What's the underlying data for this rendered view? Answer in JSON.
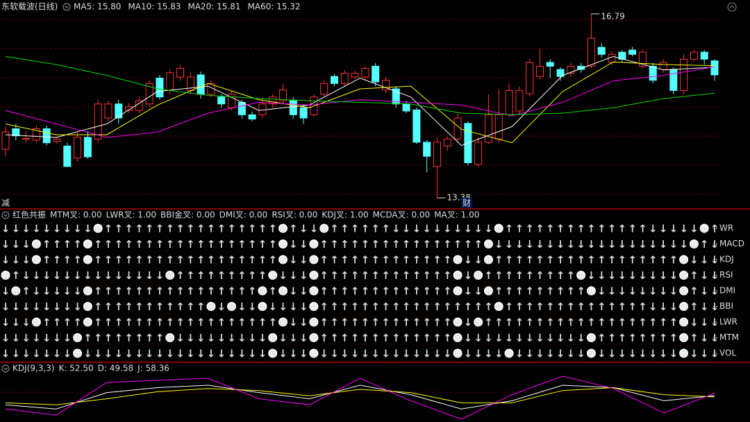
{
  "chart_data": [
    {
      "type": "candlestick",
      "title": "东软载波(日线)",
      "legend": [
        "MA5: 15.80",
        "MA10: 15.83",
        "MA20: 15.81",
        "MA60: 15.32"
      ],
      "open": [
        14.28,
        14.66,
        14.47,
        14.45,
        14.66,
        14.42,
        14.34,
        14.12,
        14.5,
        14.47,
        14.86,
        15.12,
        15.0,
        15.0,
        15.12,
        15.6,
        15.37,
        15.62,
        15.37,
        15.66,
        15.3,
        15.25,
        15.05,
        15.15,
        14.92,
        14.92,
        15.12,
        15.18,
        15.18,
        15.05,
        14.92,
        15.3,
        15.63,
        15.5,
        15.62,
        15.62,
        15.82,
        15.38,
        15.4,
        15.12,
        15.01,
        14.41,
        13.96,
        14.34,
        14.47,
        14.76,
        14.0,
        14.41,
        14.47,
        14.92,
        14.99,
        15.31,
        15.63,
        15.89,
        15.76,
        15.69,
        15.82,
        15.82,
        16.17,
        15.89,
        16.08,
        16.12,
        15.82,
        15.82,
        15.76,
        15.76,
        15.37,
        15.95,
        16.08,
        15.92
      ],
      "high": [
        14.7,
        14.75,
        14.62,
        14.72,
        14.72,
        14.5,
        14.4,
        14.6,
        14.62,
        15.2,
        15.18,
        15.2,
        15.14,
        15.25,
        15.56,
        15.66,
        15.76,
        15.84,
        15.7,
        15.72,
        15.56,
        15.3,
        15.35,
        15.2,
        14.98,
        15.25,
        15.3,
        15.5,
        15.25,
        15.1,
        15.3,
        15.55,
        15.68,
        15.75,
        15.74,
        15.82,
        15.88,
        15.62,
        15.45,
        15.18,
        15.05,
        14.45,
        14.5,
        14.52,
        14.95,
        14.8,
        14.5,
        15.3,
        15.4,
        15.5,
        15.44,
        15.95,
        16.15,
        15.95,
        15.8,
        15.88,
        15.88,
        16.79,
        16.25,
        16.1,
        16.12,
        16.18,
        16.12,
        15.88,
        15.95,
        15.8,
        16.05,
        16.12,
        16.12,
        15.95
      ],
      "low": [
        14.15,
        14.45,
        14.4,
        14.4,
        14.35,
        14.38,
        13.95,
        14.05,
        14.1,
        14.4,
        14.8,
        14.75,
        14.95,
        14.95,
        15.05,
        15.2,
        15.3,
        15.55,
        15.3,
        15.22,
        15.25,
        15.05,
        15.0,
        14.85,
        14.8,
        14.85,
        15.05,
        15.1,
        14.85,
        14.75,
        14.88,
        15.25,
        15.45,
        15.45,
        15.58,
        15.57,
        15.45,
        15.32,
        15.05,
        14.95,
        14.38,
        13.85,
        13.38,
        14.25,
        14.4,
        13.98,
        13.95,
        14.38,
        14.4,
        14.88,
        14.92,
        15.25,
        15.58,
        15.6,
        15.55,
        15.62,
        15.7,
        15.78,
        15.98,
        15.84,
        15.9,
        16.0,
        15.78,
        15.5,
        15.7,
        15.3,
        15.3,
        15.9,
        15.85,
        15.55
      ],
      "close": [
        14.6,
        14.53,
        14.48,
        14.66,
        14.4,
        14.47,
        13.96,
        14.5,
        14.14,
        15.12,
        15.12,
        14.86,
        15.07,
        15.18,
        15.5,
        15.25,
        15.7,
        15.78,
        15.62,
        15.3,
        15.5,
        15.12,
        15.3,
        14.92,
        14.84,
        15.12,
        15.25,
        15.38,
        14.92,
        14.86,
        15.25,
        15.5,
        15.5,
        15.69,
        15.69,
        15.78,
        15.53,
        15.56,
        15.12,
        14.99,
        14.41,
        14.15,
        14.41,
        14.47,
        14.86,
        14.03,
        14.41,
        14.92,
        14.92,
        15.37,
        15.37,
        15.89,
        15.82,
        15.82,
        15.63,
        15.82,
        15.76,
        16.34,
        16.04,
        16.04,
        15.95,
        16.04,
        16.08,
        15.56,
        15.89,
        15.37,
        15.95,
        16.08,
        15.95,
        15.66
      ],
      "up_color": "#ff3232",
      "down_color": "#54ffff",
      "series": [
        {
          "name": "MA5",
          "color": "#ffffff",
          "values": [
            14.55,
            14.5,
            14.75,
            15.35,
            15.45,
            15.0,
            15.1,
            15.6,
            15.25,
            14.35,
            14.7,
            15.65,
            16.0,
            15.75,
            15.8
          ]
        },
        {
          "name": "MA10",
          "color": "#ffff00",
          "values": [
            14.75,
            14.55,
            14.55,
            15.1,
            15.5,
            15.2,
            15.05,
            15.4,
            15.45,
            14.65,
            14.4,
            15.35,
            15.9,
            15.85,
            15.83
          ]
        },
        {
          "name": "MA20",
          "color": "#ff00ff",
          "values": [
            15.0,
            14.75,
            14.5,
            14.6,
            14.95,
            15.15,
            15.1,
            15.2,
            15.15,
            15.1,
            14.9,
            15.15,
            15.55,
            15.65,
            15.81
          ]
        },
        {
          "name": "MA60",
          "color": "#00e000",
          "values": [
            16.0,
            15.85,
            15.65,
            15.4,
            15.28,
            15.22,
            15.18,
            15.15,
            15.12,
            14.95,
            14.92,
            14.95,
            15.05,
            15.22,
            15.32
          ]
        }
      ],
      "notes": [
        "减",
        "财"
      ]
    },
    {
      "type": "matrix",
      "title": "红色共振",
      "items": [
        "MTM叉: 0.00",
        "LWR叉: 1.00",
        "BBI金叉: 0.00",
        "DMI叉: 0.00",
        "RSI叉: 0.00",
        "KDJ叉: 1.00",
        "MCDA叉: 0.00",
        "MA叉: 1.00"
      ],
      "row_labels": [
        "WR",
        "MACD",
        "KDJ",
        "RSI",
        "DMI",
        "BBI",
        "LWR",
        "MTM",
        "VOL"
      ],
      "up_color": "#ff3232",
      "down_color": "#00e000",
      "rows": [
        [
          "↓",
          "↓",
          "↓",
          "↓",
          "↓",
          "↓",
          "↓",
          "↓",
          "↓",
          "⊕",
          "↑",
          "↑",
          "↑",
          "↑",
          "↑",
          "↑",
          "↑",
          "↑",
          "↑",
          "↑",
          "↑",
          "↑",
          "↑",
          "↑",
          "↑",
          "↑",
          "↑",
          "⊕",
          "↑",
          "↓",
          "↓",
          "⊕",
          "↑",
          "↑",
          "↑",
          "↑",
          "↑",
          "↑",
          "↓",
          "↓",
          "↓",
          "↓",
          "↓",
          "↓",
          "↓",
          "↓",
          "↓",
          "↓",
          "⊕",
          "↑",
          "↑",
          "↑",
          "↑",
          "↑",
          "↑",
          "↑",
          "↑",
          "↑",
          "↑",
          "↑",
          "↑",
          "↑",
          "↑",
          "↓",
          "↓",
          "↓",
          "↓",
          "↓",
          "⊕",
          "↑"
        ],
        [
          "↓",
          "↓",
          "↓",
          "⊕",
          "↑",
          "↑",
          "↑",
          "↑",
          "⊕",
          "↑",
          "↑",
          "↑",
          "↑",
          "↑",
          "↑",
          "↑",
          "↑",
          "↑",
          "↑",
          "↑",
          "↑",
          "↑",
          "↑",
          "↑",
          "↑",
          "↑",
          "↑",
          "⊕",
          "↓",
          "↓",
          "⊕",
          "↑",
          "↑",
          "↑",
          "↑",
          "↑",
          "↑",
          "↑",
          "↑",
          "↑",
          "↑",
          "↑",
          "↑",
          "↑",
          "↑",
          "↑",
          "↑",
          "⊕",
          "↓",
          "↓",
          "↓",
          "↓",
          "↓",
          "↓",
          "↓",
          "↓",
          "↓",
          "↓",
          "↓",
          "↓",
          "↓",
          "↓",
          "↓",
          "↓",
          "↓",
          "↓",
          "↓",
          "⊕",
          "↑",
          "↓"
        ],
        [
          "↓",
          "↓",
          "↓",
          "⊕",
          "↑",
          "↑",
          "↑",
          "↑",
          "⊕",
          "↑",
          "↑",
          "↑",
          "↑",
          "↑",
          "↑",
          "↑",
          "↑",
          "↑",
          "↑",
          "↑",
          "↑",
          "↑",
          "↑",
          "↑",
          "↑",
          "↑",
          "↑",
          "⊕",
          "↓",
          "↓",
          "⊕",
          "↑",
          "↑",
          "↑",
          "↑",
          "↑",
          "↑",
          "↑",
          "↑",
          "↑",
          "↑",
          "↑",
          "↑",
          "↑",
          "⊕",
          "↓",
          "↓",
          "⊕",
          "↑",
          "↑",
          "↑",
          "↑",
          "↑",
          "↑",
          "↑",
          "↑",
          "↑",
          "↑",
          "↑",
          "↑",
          "↑",
          "↑",
          "↑",
          "↑",
          "↑",
          "↑",
          "⊕",
          "↓",
          "↓",
          "↓"
        ],
        [
          "⊕",
          "↑",
          "↓",
          "↓",
          "↓",
          "↓",
          "↓",
          "↓",
          "↓",
          "↓",
          "↓",
          "↓",
          "↓",
          "↓",
          "↓",
          "↓",
          "⊕",
          "↑",
          "↑",
          "↑",
          "↑",
          "↑",
          "↑",
          "↑",
          "↑",
          "↑",
          "⊕",
          "↓",
          "↓",
          "↓",
          "⊕",
          "↑",
          "↑",
          "↑",
          "↑",
          "↑",
          "↑",
          "↑",
          "↑",
          "↑",
          "↑",
          "↑",
          "↑",
          "↑",
          "⊕",
          "↓",
          "⊕",
          "↑",
          "↑",
          "↑",
          "↑",
          "↑",
          "↑",
          "↑",
          "↑",
          "↑",
          "⊕",
          "↓",
          "↓",
          "↓",
          "↓",
          "↓",
          "↓",
          "↓",
          "↓",
          "↓",
          "⊕",
          "↑",
          "↓",
          "↓"
        ],
        [
          "↓",
          "⊕",
          "↑",
          "↓",
          "↓",
          "↓",
          "↓",
          "↓",
          "⊕",
          "↑",
          "↑",
          "↑",
          "↑",
          "↑",
          "↑",
          "↑",
          "↑",
          "↑",
          "↑",
          "↑",
          "↑",
          "↑",
          "↑",
          "↑",
          "↑",
          "⊕",
          "↑",
          "⊕",
          "↓",
          "↓",
          "⊕",
          "↑",
          "↑",
          "↑",
          "↑",
          "↑",
          "↑",
          "↑",
          "↑",
          "↑",
          "↑",
          "↑",
          "↑",
          "↑",
          "⊕",
          "↓",
          "↓",
          "⊕",
          "↑",
          "↑",
          "↑",
          "↑",
          "↑",
          "↑",
          "↑",
          "↑",
          "↑",
          "⊕",
          "↓",
          "↓",
          "↓",
          "↓",
          "↓",
          "↓",
          "↓",
          "↓",
          "⊕",
          "↑",
          "↓",
          "↓"
        ],
        [
          "↓",
          "↓",
          "↓",
          "↓",
          "↓",
          "↓",
          "↓",
          "↓",
          "⊕",
          "↑",
          "↑",
          "↑",
          "↑",
          "↑",
          "↑",
          "↑",
          "↑",
          "↑",
          "↑",
          "↑",
          "⊕",
          "↓",
          "⊕",
          "↓",
          "↓",
          "⊕",
          "↓",
          "↓",
          "↓",
          "↓",
          "⊕",
          "↑",
          "↑",
          "↑",
          "↑",
          "↑",
          "↑",
          "↑",
          "↑",
          "↑",
          "↑",
          "↑",
          "↑",
          "↑",
          "↑",
          "↑",
          "↑",
          "↑",
          "⊕",
          "↑",
          "↑",
          "↑",
          "↑",
          "↑",
          "↑",
          "↑",
          "↑",
          "↑",
          "↑",
          "↑",
          "↑",
          "↑",
          "↑",
          "↓",
          "↓",
          "↓",
          "⊕",
          "↑",
          "↓",
          "↓"
        ],
        [
          "↓",
          "↓",
          "↓",
          "⊕",
          "↑",
          "↑",
          "↑",
          "↑",
          "⊕",
          "↑",
          "↑",
          "↑",
          "↑",
          "↑",
          "↑",
          "↑",
          "↑",
          "↑",
          "↑",
          "↑",
          "↑",
          "↑",
          "↑",
          "↑",
          "↑",
          "↑",
          "↑",
          "⊕",
          "↓",
          "↓",
          "⊕",
          "↑",
          "↑",
          "↑",
          "↑",
          "↑",
          "↑",
          "↑",
          "↑",
          "↑",
          "↑",
          "↑",
          "↑",
          "↑",
          "⊕",
          "↓",
          "⊕",
          "↑",
          "↑",
          "↑",
          "↑",
          "↑",
          "↑",
          "↑",
          "↑",
          "↑",
          "↑",
          "↑",
          "↑",
          "↑",
          "↑",
          "↑",
          "↑",
          "↑",
          "↑",
          "↑",
          "⊕",
          "↓",
          "↓",
          "↓"
        ],
        [
          "↓",
          "↓",
          "↓",
          "↓",
          "↓",
          "↓",
          "↓",
          "⊕",
          "↑",
          "↑",
          "↑",
          "↑",
          "↑",
          "↑",
          "↑",
          "↑",
          "⊕",
          "↓",
          "↓",
          "↓",
          "↓",
          "↓",
          "↓",
          "↓",
          "↓",
          "↓",
          "⊕",
          "↓",
          "↓",
          "↓",
          "⊕",
          "↑",
          "↑",
          "↑",
          "↑",
          "↑",
          "↑",
          "↑",
          "↑",
          "↑",
          "↑",
          "↑",
          "↑",
          "↑",
          "⊕",
          "↓",
          "↓",
          "↓",
          "↓",
          "↓",
          "↓",
          "↓",
          "↓",
          "↓",
          "↓",
          "↓",
          "↓",
          "⊕",
          "↑",
          "↑",
          "↑",
          "↑",
          "↑",
          "↑",
          "↑",
          "↑",
          "⊕",
          "↑",
          "↓",
          "↓"
        ],
        [
          "↓",
          "↓",
          "↓",
          "↓",
          "↓",
          "↓",
          "↓",
          "⊕",
          "↓",
          "↓",
          "↓",
          "↓",
          "↓",
          "↓",
          "↓",
          "↓",
          "↓",
          "↓",
          "↓",
          "↓",
          "↓",
          "↓",
          "↓",
          "↓",
          "↓",
          "↓",
          "⊕",
          "↓",
          "↓",
          "↓",
          "⊕",
          "↓",
          "↓",
          "↓",
          "↓",
          "↓",
          "↓",
          "↓",
          "↓",
          "↓",
          "↓",
          "↓",
          "↓",
          "↓",
          "⊕",
          "↓",
          "↓",
          "↓",
          "↓",
          "⊕",
          "↓",
          "↓",
          "↓",
          "↓",
          "↓",
          "↓",
          "↓",
          "⊕",
          "↓",
          "↓",
          "↓",
          "↓",
          "↓",
          "↓",
          "↓",
          "↓",
          "⊕",
          "↓",
          "↓",
          "↓"
        ]
      ]
    },
    {
      "type": "line",
      "title": "KDJ(9,3,3)",
      "legend": [
        "K: 52.50",
        "D: 49.58",
        "J: 58.36"
      ],
      "series": [
        {
          "name": "K",
          "color": "#ffffff",
          "values": [
            30,
            20,
            60,
            72,
            78,
            60,
            45,
            78,
            55,
            20,
            40,
            78,
            72,
            40,
            52.5
          ]
        },
        {
          "name": "D",
          "color": "#ffff00",
          "values": [
            35,
            30,
            45,
            62,
            70,
            65,
            52,
            68,
            60,
            35,
            35,
            65,
            72,
            55,
            49.58
          ]
        },
        {
          "name": "J",
          "color": "#ff00ff",
          "values": [
            20,
            5,
            85,
            90,
            95,
            45,
            30,
            95,
            40,
            -5,
            55,
            100,
            70,
            10,
            58.36
          ]
        }
      ]
    }
  ]
}
